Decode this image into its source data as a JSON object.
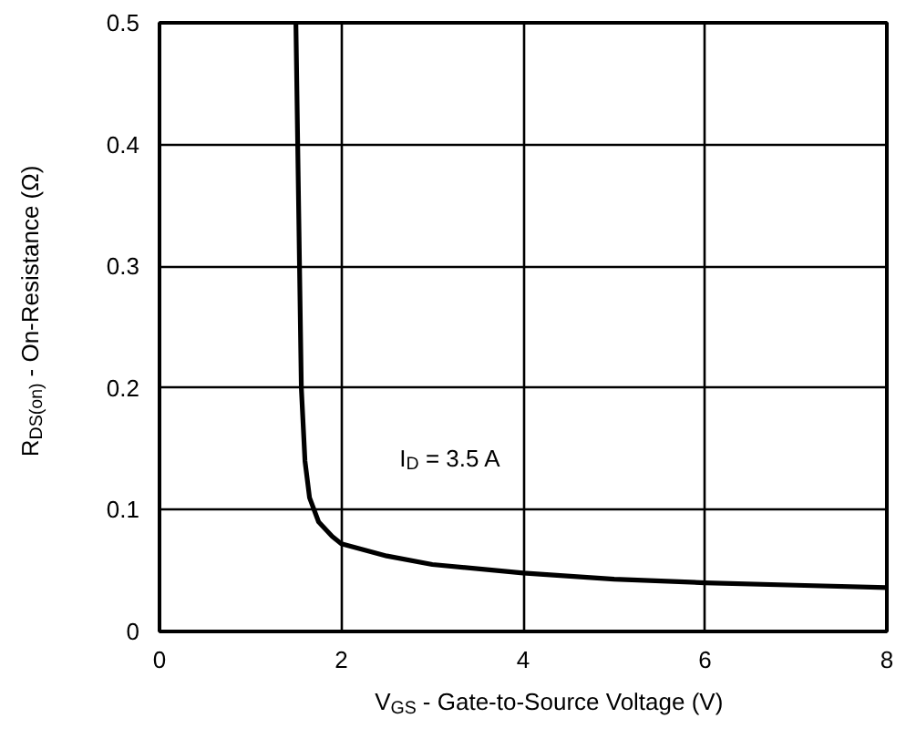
{
  "chart_data": {
    "type": "line",
    "xlabel": "V$_{GS}$ - Gate-to-Source Voltage (V)",
    "ylabel": "R$_{DS(on)}$ - On-Resistance (Ω)",
    "annotations": [
      "I$_{D}$ = 3.5 A"
    ],
    "x": [
      1.5,
      1.52,
      1.54,
      1.56,
      1.6,
      1.65,
      1.75,
      1.9,
      2.0,
      2.5,
      3,
      4,
      5,
      6,
      7,
      8
    ],
    "series": [
      {
        "color": "#000000",
        "values": [
          0.5,
          0.4,
          0.3,
          0.2,
          0.14,
          0.11,
          0.09,
          0.078,
          0.072,
          0.062,
          0.055,
          0.048,
          0.043,
          0.04,
          0.038,
          0.036
        ]
      }
    ],
    "xlim": [
      0,
      8
    ],
    "ylim": [
      0,
      0.5
    ],
    "xticks": [
      0,
      2,
      4,
      6,
      8
    ],
    "yticks": [
      0,
      0.1,
      0.2,
      0.3,
      0.4,
      0.5
    ],
    "grid": true,
    "line_style": "solid",
    "marker": "none"
  }
}
